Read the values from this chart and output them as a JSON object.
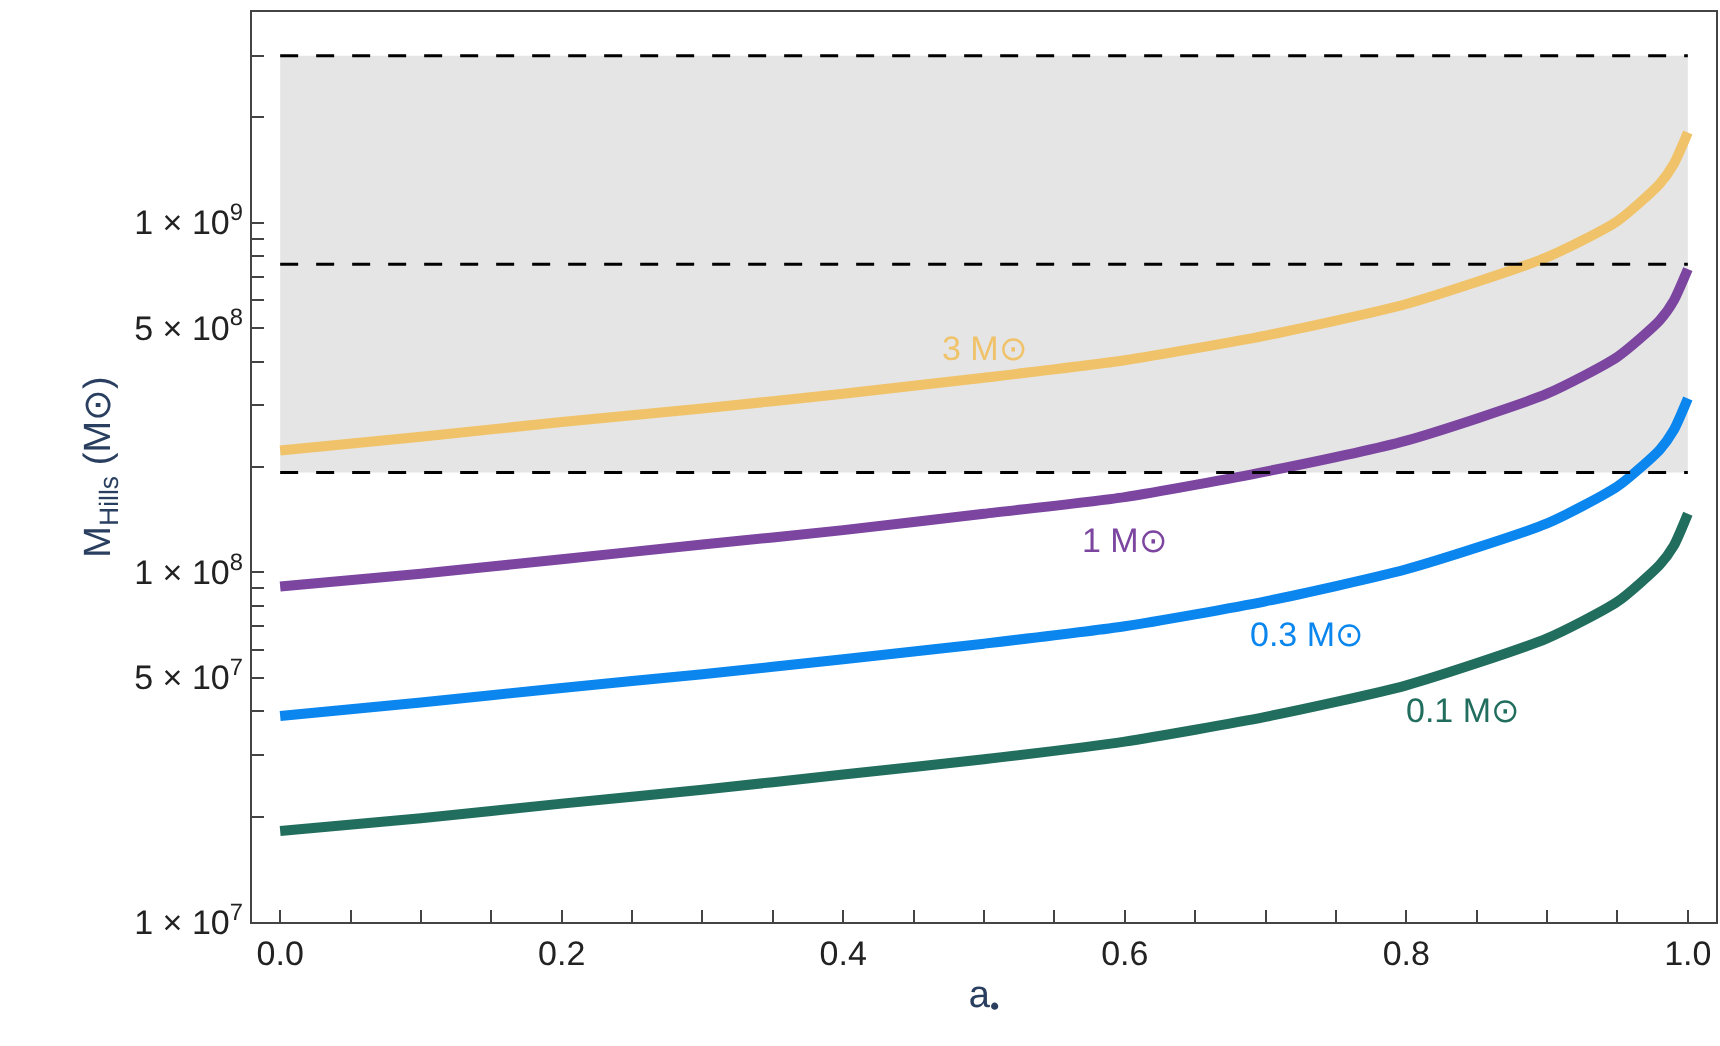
{
  "chart_data": {
    "type": "line",
    "xlabel": "a$_{•}$",
    "ylabel": "M$_{Hills}$ (M⊙)",
    "x": [
      0,
      0.1,
      0.2,
      0.3,
      0.4,
      0.5,
      0.6,
      0.7,
      0.8,
      0.9,
      0.95,
      0.98,
      0.99,
      1.0
    ],
    "series": [
      {
        "name": "3 M⊙",
        "color": "#f0c36a",
        "values": [
          223000000.0,
          244000000.0,
          269000000.0,
          294000000.0,
          324000000.0,
          360000000.0,
          404000000.0,
          475000000.0,
          585000000.0,
          796000000.0,
          1010000000.0,
          1290000000.0,
          1470000000.0,
          1810000000.0
        ]
      },
      {
        "name": "1 M⊙",
        "color": "#7b45a0",
        "values": [
          91000000.0,
          99000000.0,
          109000000.0,
          120000000.0,
          132000000.0,
          147000000.0,
          164000000.0,
          194000000.0,
          238000000.0,
          324000000.0,
          413000000.0,
          525000000.0,
          598000000.0,
          736000000.0
        ]
      },
      {
        "name": "0.3 M⊙",
        "color": "#0a86ee",
        "values": [
          38800000.0,
          42400000.0,
          46700000.0,
          51100000.0,
          56400000.0,
          62500000.0,
          70100000.0,
          82600000.0,
          102000000.0,
          138000000.0,
          176000000.0,
          224000000.0,
          255000000.0,
          314000000.0
        ]
      },
      {
        "name": "0.1 M⊙",
        "color": "#226e5e",
        "values": [
          18200000.0,
          19800000.0,
          21800000.0,
          23900000.0,
          26400000.0,
          29200000.0,
          32800000.0,
          38600000.0,
          47500000.0,
          64700000.0,
          82400000.0,
          105000000.0,
          119000000.0,
          147000000.0
        ]
      }
    ],
    "log": "y",
    "xlim": [
      -0.02,
      1.02
    ],
    "ylim": [
      10000000.0,
      4000000000.0
    ],
    "xticks": [
      {
        "value": 0,
        "label": "0.0"
      },
      {
        "value": 0.05,
        "label": null
      },
      {
        "value": 0.1,
        "label": null
      },
      {
        "value": 0.15,
        "label": null
      },
      {
        "value": 0.2,
        "label": "0.2"
      },
      {
        "value": 0.25,
        "label": null
      },
      {
        "value": 0.3,
        "label": null
      },
      {
        "value": 0.35,
        "label": null
      },
      {
        "value": 0.4,
        "label": "0.4"
      },
      {
        "value": 0.45,
        "label": null
      },
      {
        "value": 0.5,
        "label": null
      },
      {
        "value": 0.55,
        "label": null
      },
      {
        "value": 0.6,
        "label": "0.6"
      },
      {
        "value": 0.65,
        "label": null
      },
      {
        "value": 0.7,
        "label": null
      },
      {
        "value": 0.75,
        "label": null
      },
      {
        "value": 0.8,
        "label": "0.8"
      },
      {
        "value": 0.85,
        "label": null
      },
      {
        "value": 0.9,
        "label": null
      },
      {
        "value": 0.95,
        "label": null
      },
      {
        "value": 1.0,
        "label": "1.0"
      }
    ],
    "yticks": [
      {
        "value": 10000000.0,
        "label": "1 × 10$^{7}$"
      },
      {
        "value": 20000000.0,
        "label": null
      },
      {
        "value": 30000000.0,
        "label": null
      },
      {
        "value": 40000000.0,
        "label": null
      },
      {
        "value": 50000000.0,
        "label": "5 × 10$^{7}$"
      },
      {
        "value": 60000000.0,
        "label": null
      },
      {
        "value": 70000000.0,
        "label": null
      },
      {
        "value": 80000000.0,
        "label": null
      },
      {
        "value": 90000000.0,
        "label": null
      },
      {
        "value": 100000000.0,
        "label": "1 × 10$^{8}$"
      },
      {
        "value": 200000000.0,
        "label": null
      },
      {
        "value": 300000000.0,
        "label": null
      },
      {
        "value": 400000000.0,
        "label": null
      },
      {
        "value": 500000000.0,
        "label": "5 × 10$^{8}$"
      },
      {
        "value": 600000000.0,
        "label": null
      },
      {
        "value": 700000000.0,
        "label": null
      },
      {
        "value": 800000000.0,
        "label": null
      },
      {
        "value": 900000000.0,
        "label": null
      },
      {
        "value": 1000000000.0,
        "label": "1 × 10$^{9}$"
      },
      {
        "value": 2000000000.0,
        "label": null
      },
      {
        "value": 3000000000.0,
        "label": null
      }
    ],
    "ref_lines": [
      {
        "axis": "y",
        "value": 3000000000.0,
        "color": "#000000",
        "line_style": "dashed"
      },
      {
        "axis": "y",
        "value": 760000000.0,
        "color": "#000000",
        "line_style": "dashed"
      },
      {
        "axis": "y",
        "value": 193000000.0,
        "color": "#000000",
        "line_style": "dashed"
      }
    ],
    "bands": [
      {
        "axis": "y",
        "from": 193000000.0,
        "to": 3000000000.0,
        "color": "#e5e5e5"
      }
    ],
    "grid": false,
    "legend": false,
    "marker": "none",
    "line_style": "solid"
  }
}
